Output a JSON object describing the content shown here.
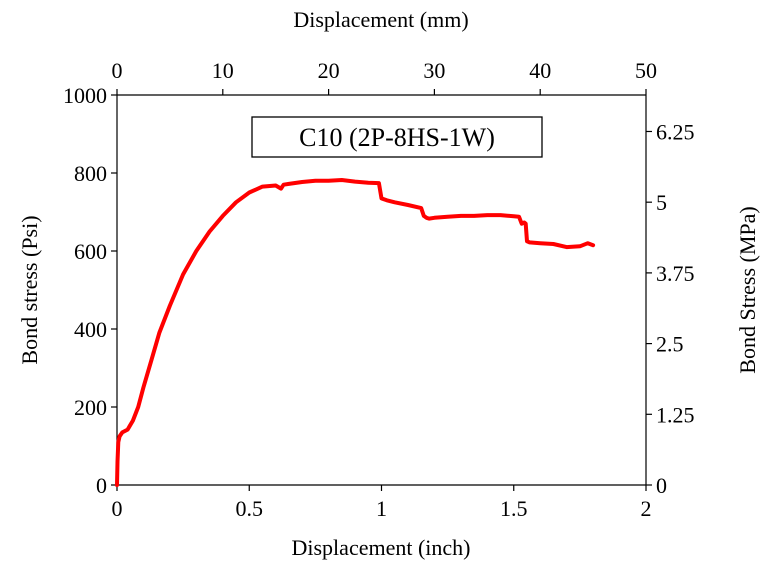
{
  "chart_data": {
    "type": "line",
    "annotation": "C10 (2P-8HS-1W)",
    "xlabel_bottom": "Displacement  (inch)",
    "xlabel_top": "Displacement  (mm)",
    "ylabel_left": "Bond stress (Psi)",
    "ylabel_right": "Bond Stress (MPa)",
    "xlim": [
      0,
      2
    ],
    "ylim": [
      0,
      1000
    ],
    "x2lim": [
      0,
      50
    ],
    "y2lim": [
      0,
      6.895
    ],
    "xticks": [
      "0",
      "0.5",
      "1",
      "1.5",
      "2"
    ],
    "yticks": [
      "0",
      "200",
      "400",
      "600",
      "800",
      "1000"
    ],
    "x2ticks": [
      "0",
      "10",
      "20",
      "30",
      "40",
      "50"
    ],
    "y2ticks": [
      "0",
      "1.25",
      "2.5",
      "3.75",
      "5",
      "6.25"
    ],
    "grid": false,
    "line_color": "#ff0000",
    "series": [
      {
        "x": [
          0,
          0.002,
          0.005,
          0.01,
          0.02,
          0.04,
          0.06,
          0.08,
          0.1,
          0.13,
          0.16,
          0.2,
          0.25,
          0.3,
          0.35,
          0.4,
          0.45,
          0.5,
          0.55,
          0.6,
          0.62,
          0.63,
          0.65,
          0.7,
          0.75,
          0.8,
          0.85,
          0.9,
          0.95,
          0.99,
          1.0,
          1.02,
          1.05,
          1.1,
          1.15,
          1.16,
          1.17,
          1.18,
          1.2,
          1.25,
          1.3,
          1.35,
          1.4,
          1.45,
          1.5,
          1.52,
          1.53,
          1.54,
          1.545,
          1.55,
          1.56,
          1.6,
          1.65,
          1.7,
          1.75,
          1.78,
          1.8
        ],
        "y": [
          0,
          60,
          110,
          125,
          135,
          142,
          165,
          200,
          250,
          320,
          390,
          460,
          540,
          600,
          650,
          690,
          725,
          750,
          765,
          768,
          760,
          770,
          772,
          777,
          780,
          780,
          782,
          778,
          775,
          774,
          735,
          730,
          725,
          718,
          710,
          690,
          685,
          683,
          685,
          688,
          690,
          690,
          692,
          692,
          689,
          688,
          670,
          673,
          670,
          625,
          622,
          620,
          618,
          610,
          612,
          620,
          615
        ]
      }
    ]
  }
}
